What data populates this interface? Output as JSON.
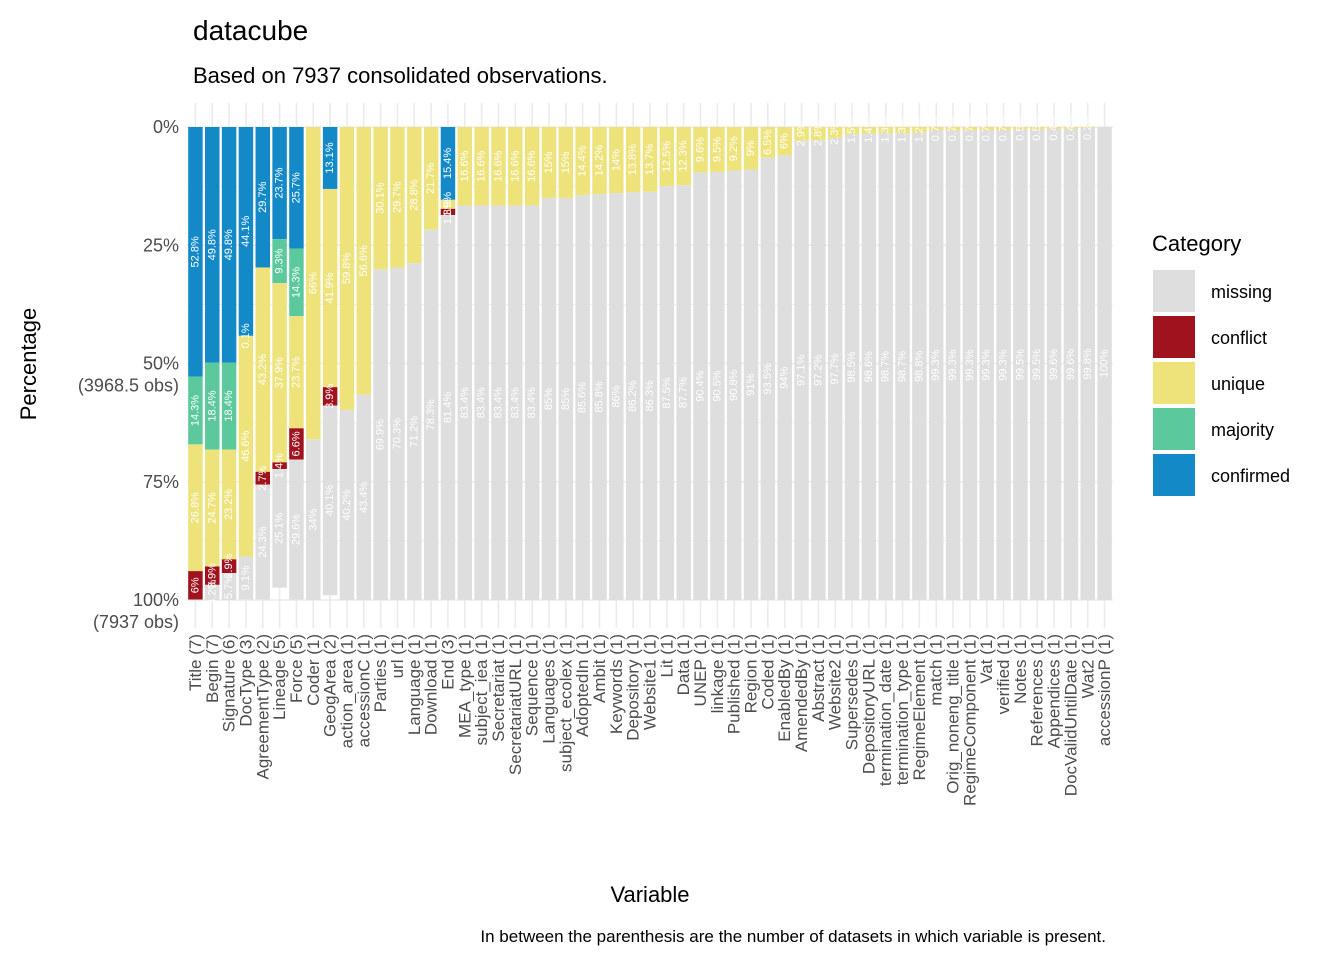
{
  "chart_data": {
    "type": "bar",
    "stacked": true,
    "title": "datacube",
    "subtitle": "Based on 7937 consolidated observations.",
    "caption": "In between the parenthesis are the number of datasets in which variable is present.",
    "xlabel": "Variable",
    "ylabel": "Percentage",
    "ylim": [
      0,
      100
    ],
    "y_reversed": true,
    "y_ticks": [
      {
        "value": 0,
        "label": "0%"
      },
      {
        "value": 25,
        "label": "25%"
      },
      {
        "value": 50,
        "label": "50%",
        "label2": "(3968.5 obs)"
      },
      {
        "value": 75,
        "label": "75%"
      },
      {
        "value": 100,
        "label": "100%",
        "label2": "(7937 obs)"
      }
    ],
    "grid": true,
    "legend": {
      "title": "Category",
      "position": "right"
    },
    "colors": {
      "missing": "#dedede",
      "conflict": "#a0121d",
      "unique": "#eee37b",
      "majority": "#5cc99d",
      "confirmed": "#1489c8"
    },
    "series_order": [
      "confirmed",
      "majority",
      "unique",
      "conflict",
      "missing"
    ],
    "legend_order": [
      "missing",
      "conflict",
      "unique",
      "majority",
      "confirmed"
    ],
    "categories": [
      "Title (7)",
      "Begin (7)",
      "Signature (6)",
      "DocType (3)",
      "AgreementType (2)",
      "Lineage (5)",
      "Force (5)",
      "Coder (1)",
      "GeogArea (2)",
      "action_area (1)",
      "accessionC (1)",
      "Parties (1)",
      "url (1)",
      "Language (1)",
      "Download (1)",
      "End (3)",
      "MEA_type (1)",
      "subject_iea (1)",
      "Secretariat (1)",
      "SecretariatURL (1)",
      "Sequence (1)",
      "Languages (1)",
      "subject_ecolex (1)",
      "AdoptedIn (1)",
      "Ambit (1)",
      "Keywords (1)",
      "Depository (1)",
      "Website1 (1)",
      "Lit (1)",
      "Data (1)",
      "UNEP (1)",
      "linkage (1)",
      "Published (1)",
      "Region (1)",
      "Coded (1)",
      "EnabledBy (1)",
      "AmendedBy (1)",
      "Abstract (1)",
      "Website2 (1)",
      "Supersedes (1)",
      "DepositoryURL (1)",
      "termination_date (1)",
      "termination_type (1)",
      "RegimeElement (1)",
      "match (1)",
      "Orig_noneng_title (1)",
      "RegimeComponent (1)",
      "Vat (1)",
      "verified (1)",
      "Notes (1)",
      "References (1)",
      "Appendices (1)",
      "DocValidUntilDate (1)",
      "Wat2 (1)",
      "accessionP (1)"
    ],
    "series": [
      {
        "name": "confirmed",
        "values": [
          52.8,
          49.8,
          49.8,
          44.1,
          29.7,
          23.7,
          25.7,
          0,
          13.1,
          0,
          0,
          0,
          0,
          0,
          0,
          15.4,
          0,
          0,
          0,
          0,
          0,
          0,
          0,
          0,
          0,
          0,
          0,
          0,
          0,
          0,
          0,
          0,
          0,
          0,
          0,
          0,
          0,
          0,
          0,
          0,
          0,
          0,
          0,
          0,
          0,
          0,
          0,
          0,
          0,
          0,
          0,
          0,
          0,
          0,
          0
        ]
      },
      {
        "name": "majority",
        "values": [
          14.3,
          18.4,
          18.4,
          0.1,
          0,
          9.3,
          14.3,
          0,
          0,
          0,
          0,
          0,
          0,
          0,
          0,
          0,
          0,
          0,
          0,
          0,
          0,
          0,
          0,
          0,
          0,
          0,
          0,
          0,
          0,
          0,
          0,
          0,
          0,
          0,
          0,
          0,
          0,
          0,
          0,
          0,
          0,
          0,
          0,
          0,
          0,
          0,
          0,
          0,
          0,
          0,
          0,
          0,
          0,
          0,
          0
        ]
      },
      {
        "name": "unique",
        "values": [
          26.8,
          24.7,
          23.2,
          46.6,
          43.2,
          37.9,
          23.7,
          66,
          41.9,
          59.8,
          56.6,
          30.1,
          29.7,
          28.8,
          21.7,
          1.9,
          16.6,
          16.6,
          16.6,
          16.6,
          16.6,
          15,
          15,
          14.4,
          14.2,
          14,
          13.8,
          13.7,
          12.5,
          12.3,
          9.6,
          9.5,
          9.2,
          9,
          6.5,
          6,
          2.9,
          2.8,
          2.3,
          1.5,
          1.4,
          1.3,
          1.3,
          1.2,
          0.7,
          0.7,
          0.7,
          0.7,
          0.7,
          0.5,
          0.5,
          0.4,
          0.4,
          0.2,
          0
        ]
      },
      {
        "name": "conflict",
        "values": [
          6,
          3.9,
          2.9,
          0,
          2.7,
          1.4,
          6.6,
          0,
          3.9,
          0,
          0,
          0,
          0,
          0,
          0,
          1.3,
          0,
          0,
          0,
          0,
          0,
          0,
          0,
          0,
          0,
          0,
          0,
          0,
          0,
          0,
          0,
          0,
          0,
          0,
          0,
          0,
          0,
          0,
          0,
          0,
          0,
          0,
          0,
          0,
          0,
          0,
          0,
          0,
          0,
          0,
          0,
          0,
          0,
          0,
          0
        ]
      },
      {
        "name": "missing",
        "values": [
          0,
          3.2,
          5.7,
          9.1,
          24.3,
          25.1,
          29.6,
          34,
          40.1,
          40.2,
          43.4,
          69.9,
          70.3,
          71.2,
          78.3,
          81.4,
          83.4,
          83.4,
          83.4,
          83.4,
          83.4,
          85,
          85,
          85.6,
          85.8,
          86,
          86.2,
          86.3,
          87.5,
          87.7,
          90.4,
          90.5,
          90.8,
          91,
          93.5,
          94,
          97.1,
          97.2,
          97.7,
          98.5,
          98.6,
          98.7,
          98.7,
          98.8,
          99.3,
          99.3,
          99.3,
          99.3,
          99.3,
          99.5,
          99.5,
          99.6,
          99.6,
          99.8,
          100
        ]
      }
    ],
    "value_labels": {
      "confirmed": [
        "52.8%",
        "49.8%",
        "49.8%",
        "44.1%",
        "29.7%",
        "23.7%",
        "25.7%",
        "",
        "13.1%",
        "",
        "",
        "",
        "",
        "",
        "",
        "15.4%",
        "",
        "",
        "",
        "",
        "",
        "",
        "",
        "",
        "",
        "",
        "",
        "",
        "",
        "",
        "",
        "",
        "",
        "",
        "",
        "",
        "",
        "",
        "",
        "",
        "",
        "",
        "",
        "",
        "",
        "",
        "",
        "",
        "",
        "",
        "",
        "",
        "",
        "",
        ""
      ],
      "majority": [
        "14.3%",
        "18.4%",
        "18.4%",
        "0.1%",
        "",
        "9.3%",
        "14.3%",
        "",
        "",
        "",
        "",
        "",
        "",
        "",
        "",
        "",
        "",
        "",
        "",
        "",
        "",
        "",
        "",
        "",
        "",
        "",
        "",
        "",
        "",
        "",
        "",
        "",
        "",
        "",
        "",
        "",
        "",
        "",
        "",
        "",
        "",
        "",
        "",
        "",
        "",
        "",
        "",
        "",
        "",
        "",
        "",
        "",
        "",
        "",
        ""
      ],
      "unique": [
        "26.8%",
        "24.7%",
        "23.2%",
        "46.6%",
        "43.2%",
        "37.9%",
        "23.7%",
        "66%",
        "41.9%",
        "59.8%",
        "56.6%",
        "30.1%",
        "29.7%",
        "28.8%",
        "21.7%",
        "1.9%",
        "16.6%",
        "16.6%",
        "16.6%",
        "16.6%",
        "16.6%",
        "15%",
        "15%",
        "14.4%",
        "14.2%",
        "14%",
        "13.8%",
        "13.7%",
        "12.5%",
        "12.3%",
        "9.6%",
        "9.5%",
        "9.2%",
        "9%",
        "6.5%",
        "6%",
        "2.9%",
        "2.8%",
        "2.3%",
        "1.5%",
        "1.4%",
        "1.3%",
        "1.3%",
        "1.2%",
        "0.7%",
        "0.7%",
        "0.7%",
        "0.7%",
        "0.7%",
        "0.5%",
        "0.5%",
        "0.4%",
        "0.4%",
        "0.2%",
        ""
      ],
      "conflict": [
        "6%",
        "3.9%",
        "2.9%",
        "",
        "2.7%",
        "1.4%",
        "6.6%",
        "",
        "3.9%",
        "",
        "",
        "",
        "",
        "",
        "",
        "1.3%",
        "",
        "",
        "",
        "",
        "",
        "",
        "",
        "",
        "",
        "",
        "",
        "",
        "",
        "",
        "",
        "",
        "",
        "",
        "",
        "",
        "",
        "",
        "",
        "",
        "",
        "",
        "",
        "",
        "",
        "",
        "",
        "",
        "",
        "",
        "",
        "",
        "",
        "",
        ""
      ],
      "missing": [
        "",
        "3.2%",
        "5.7%",
        "9.1%",
        "24.3%",
        "25.1%",
        "29.6%",
        "34%",
        "40.1%",
        "40.2%",
        "43.4%",
        "69.9%",
        "70.3%",
        "71.2%",
        "78.3%",
        "81.4%",
        "83.4%",
        "83.4%",
        "83.4%",
        "83.4%",
        "83.4%",
        "85%",
        "85%",
        "85.6%",
        "85.8%",
        "86%",
        "86.2%",
        "86.3%",
        "87.5%",
        "87.7%",
        "90.4%",
        "90.5%",
        "90.8%",
        "91%",
        "93.5%",
        "94%",
        "97.1%",
        "97.2%",
        "97.7%",
        "98.5%",
        "98.6%",
        "98.7%",
        "98.7%",
        "98.8%",
        "99.3%",
        "99.3%",
        "99.3%",
        "99.3%",
        "99.3%",
        "99.5%",
        "99.5%",
        "99.6%",
        "99.6%",
        "99.8%",
        "100%"
      ]
    }
  }
}
